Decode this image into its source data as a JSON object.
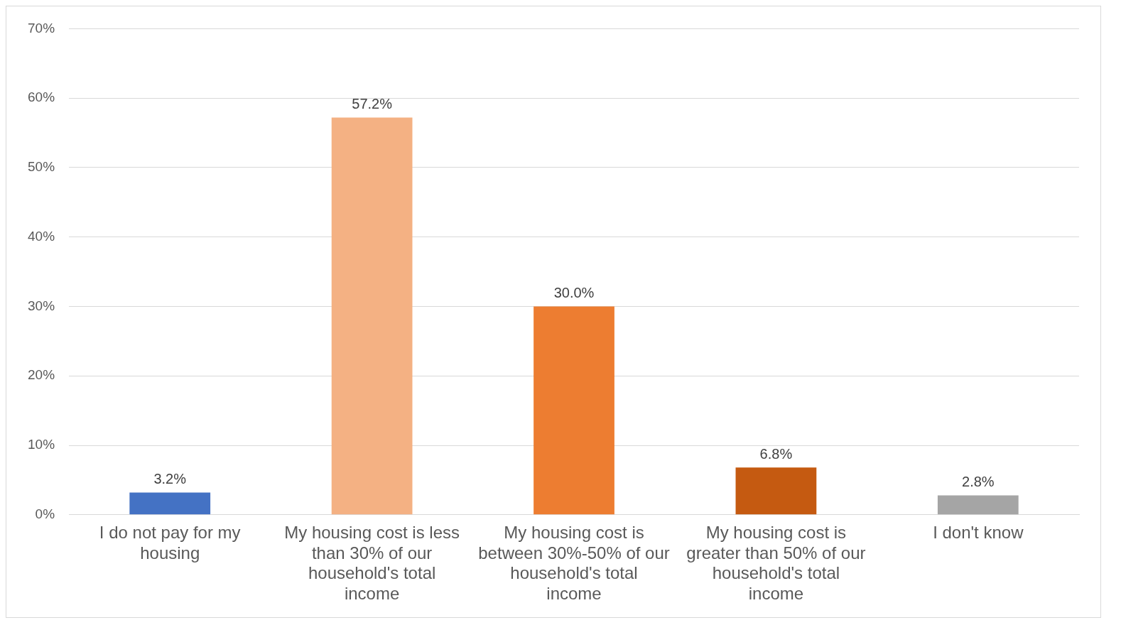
{
  "chart_data": {
    "type": "bar",
    "categories": [
      "I do not pay for my housing",
      "My housing cost is less than 30% of our household's total income",
      "My housing cost is between 30%-50% of our household's total income",
      "My housing cost is greater than 50% of our household's total income",
      "I don't know"
    ],
    "values": [
      3.2,
      57.2,
      30.0,
      6.8,
      2.8
    ],
    "colors": [
      "#4472c4",
      "#f4b183",
      "#ed7d31",
      "#c55a11",
      "#a5a5a5"
    ],
    "value_labels": [
      "3.2%",
      "57.2%",
      "30.0%",
      "6.8%",
      "2.8%"
    ],
    "ylim": [
      0,
      70
    ],
    "yticks": [
      {
        "value": 0,
        "label": "0%"
      },
      {
        "value": 10,
        "label": "10%"
      },
      {
        "value": 20,
        "label": "20%"
      },
      {
        "value": 30,
        "label": "30%"
      },
      {
        "value": 40,
        "label": "40%"
      },
      {
        "value": 50,
        "label": "50%"
      },
      {
        "value": 60,
        "label": "60%"
      },
      {
        "value": 70,
        "label": "70%"
      }
    ],
    "grid": "y",
    "legend": false
  }
}
